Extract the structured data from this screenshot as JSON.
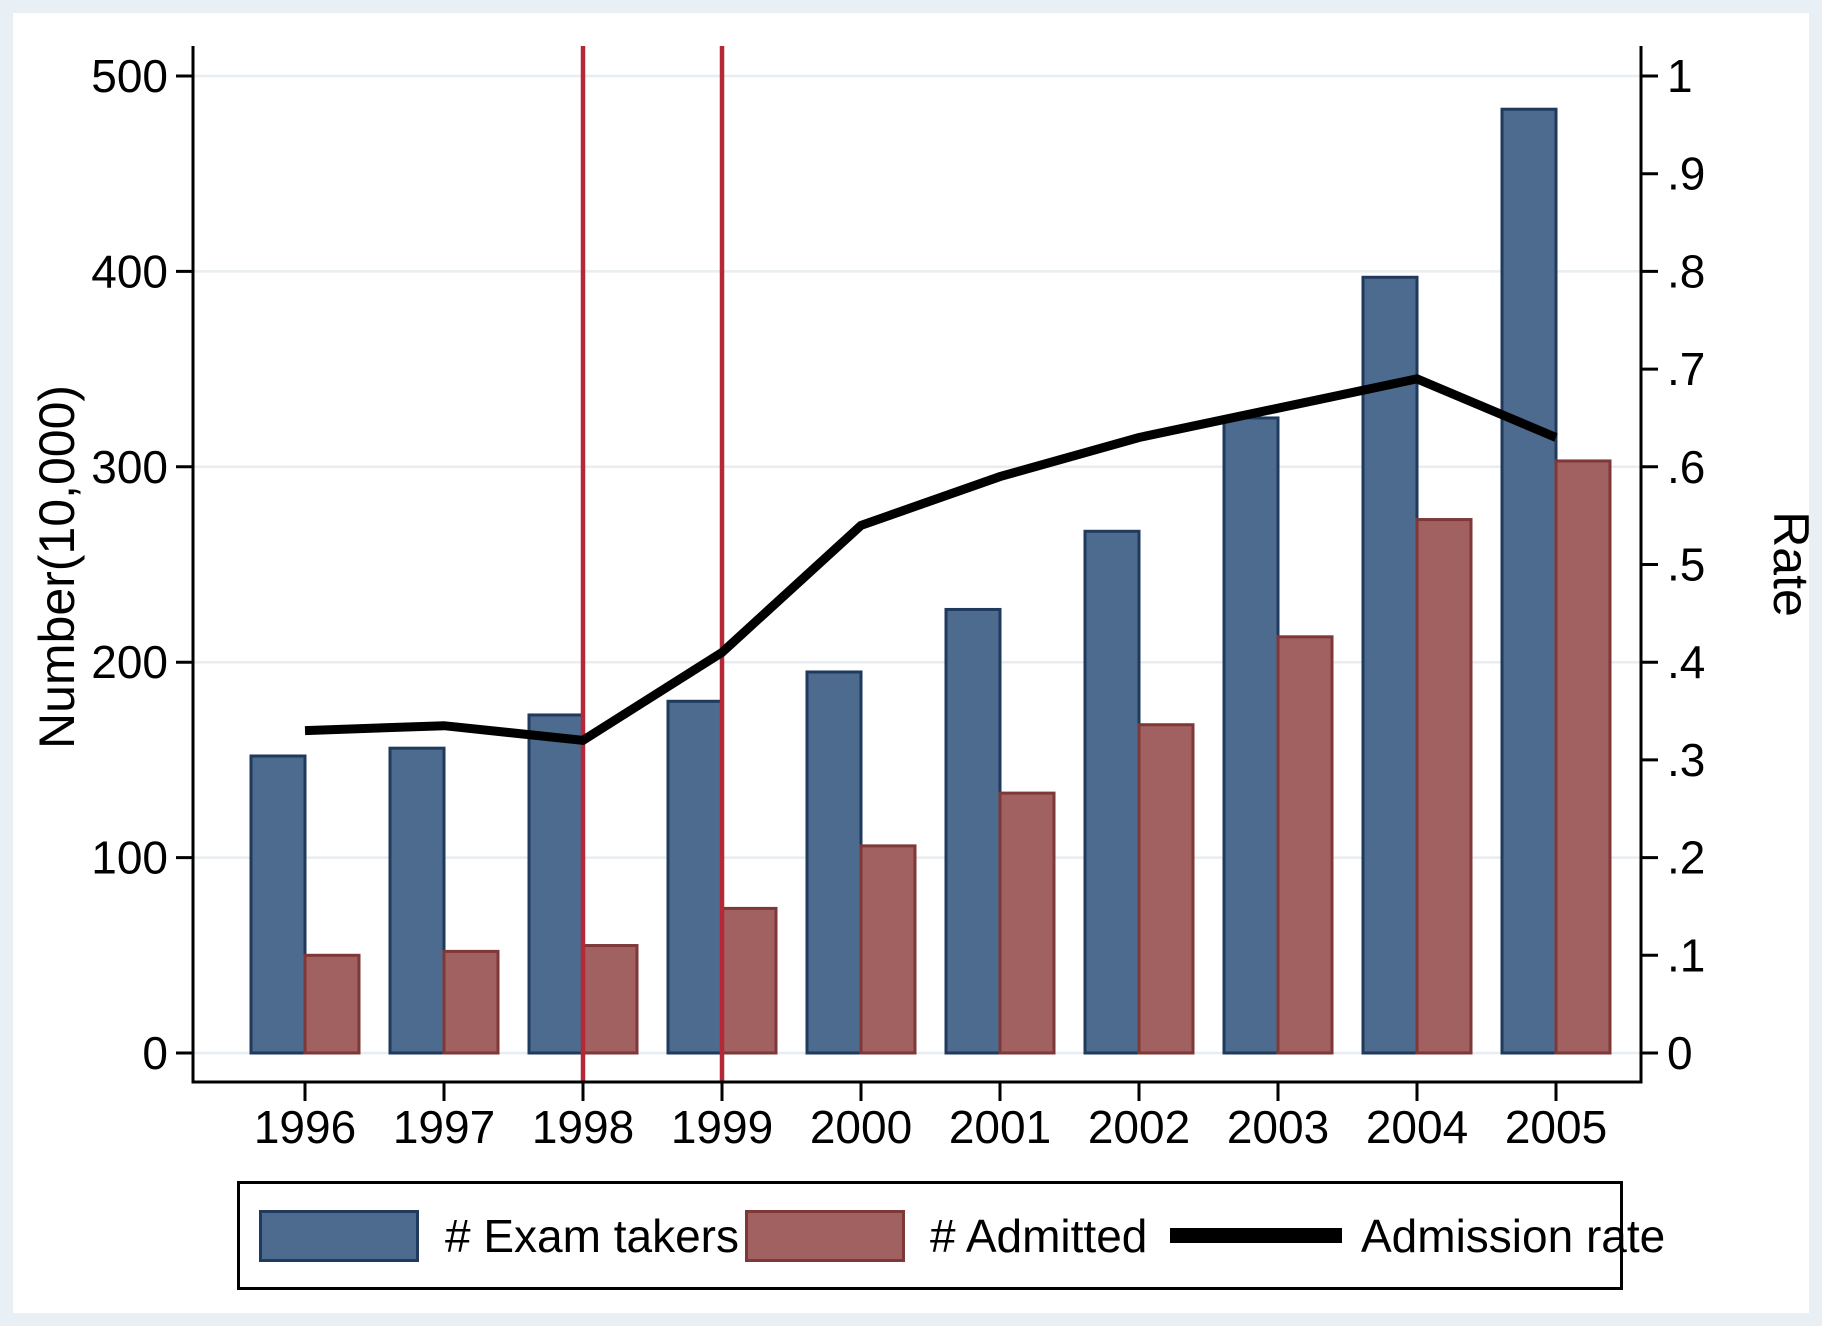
{
  "chart_data": {
    "type": "bar",
    "subtype": "grouped bars with overlaid line, dual y-axes",
    "categories": [
      "1996",
      "1997",
      "1998",
      "1999",
      "2000",
      "2001",
      "2002",
      "2003",
      "2004",
      "2005"
    ],
    "series": [
      {
        "name": "# Exam takers",
        "type": "bar",
        "axis": "left",
        "fill": "#4d6b8e",
        "border": "#1f3a5c",
        "values": [
          152,
          156,
          173,
          180,
          195,
          227,
          267,
          325,
          397,
          483
        ]
      },
      {
        "name": "# Admitted",
        "type": "bar",
        "axis": "left",
        "fill": "#a16161",
        "border": "#7f3838",
        "values": [
          50,
          52,
          55,
          74,
          106,
          133,
          168,
          213,
          273,
          303
        ]
      },
      {
        "name": "Admission rate",
        "type": "line",
        "axis": "right",
        "color": "#000000",
        "values": [
          0.33,
          0.335,
          0.32,
          0.41,
          0.54,
          0.59,
          0.63,
          0.66,
          0.69,
          0.63
        ]
      }
    ],
    "left_axis": {
      "label": "Number(10,000)",
      "range": [
        0,
        500
      ],
      "tick_values": [
        0,
        100,
        200,
        300,
        400,
        500
      ],
      "tick_labels": [
        "0",
        "100",
        "200",
        "300",
        "400",
        "500"
      ]
    },
    "right_axis": {
      "label": "Rate",
      "range": [
        0,
        1
      ],
      "tick_values": [
        0,
        0.1,
        0.2,
        0.3,
        0.4,
        0.5,
        0.6,
        0.7,
        0.8,
        0.9,
        1
      ],
      "tick_labels": [
        "0",
        ".1",
        ".2",
        ".3",
        ".4",
        ".5",
        ".6",
        ".7",
        ".8",
        ".9",
        "1"
      ]
    },
    "x_axis": {
      "tick_labels": [
        "1996",
        "1997",
        "1998",
        "1999",
        "2000",
        "2001",
        "2002",
        "2003",
        "2004",
        "2005"
      ]
    },
    "reference_lines": {
      "at_categories": [
        "1998",
        "1999"
      ],
      "color": "#b52937",
      "orientation": "vertical"
    },
    "gridlines": {
      "horizontal": true,
      "color": "#e7edf1"
    },
    "legend": {
      "position": "bottom",
      "entries": [
        "# Exam takers",
        "# Admitted",
        "Admission rate"
      ]
    }
  },
  "colors": {
    "canvas_margin": "#e8eff5",
    "plot_background": "#ffffff",
    "axis": "#000000",
    "grid": "#e7edf1",
    "reference_line": "#b52937"
  }
}
